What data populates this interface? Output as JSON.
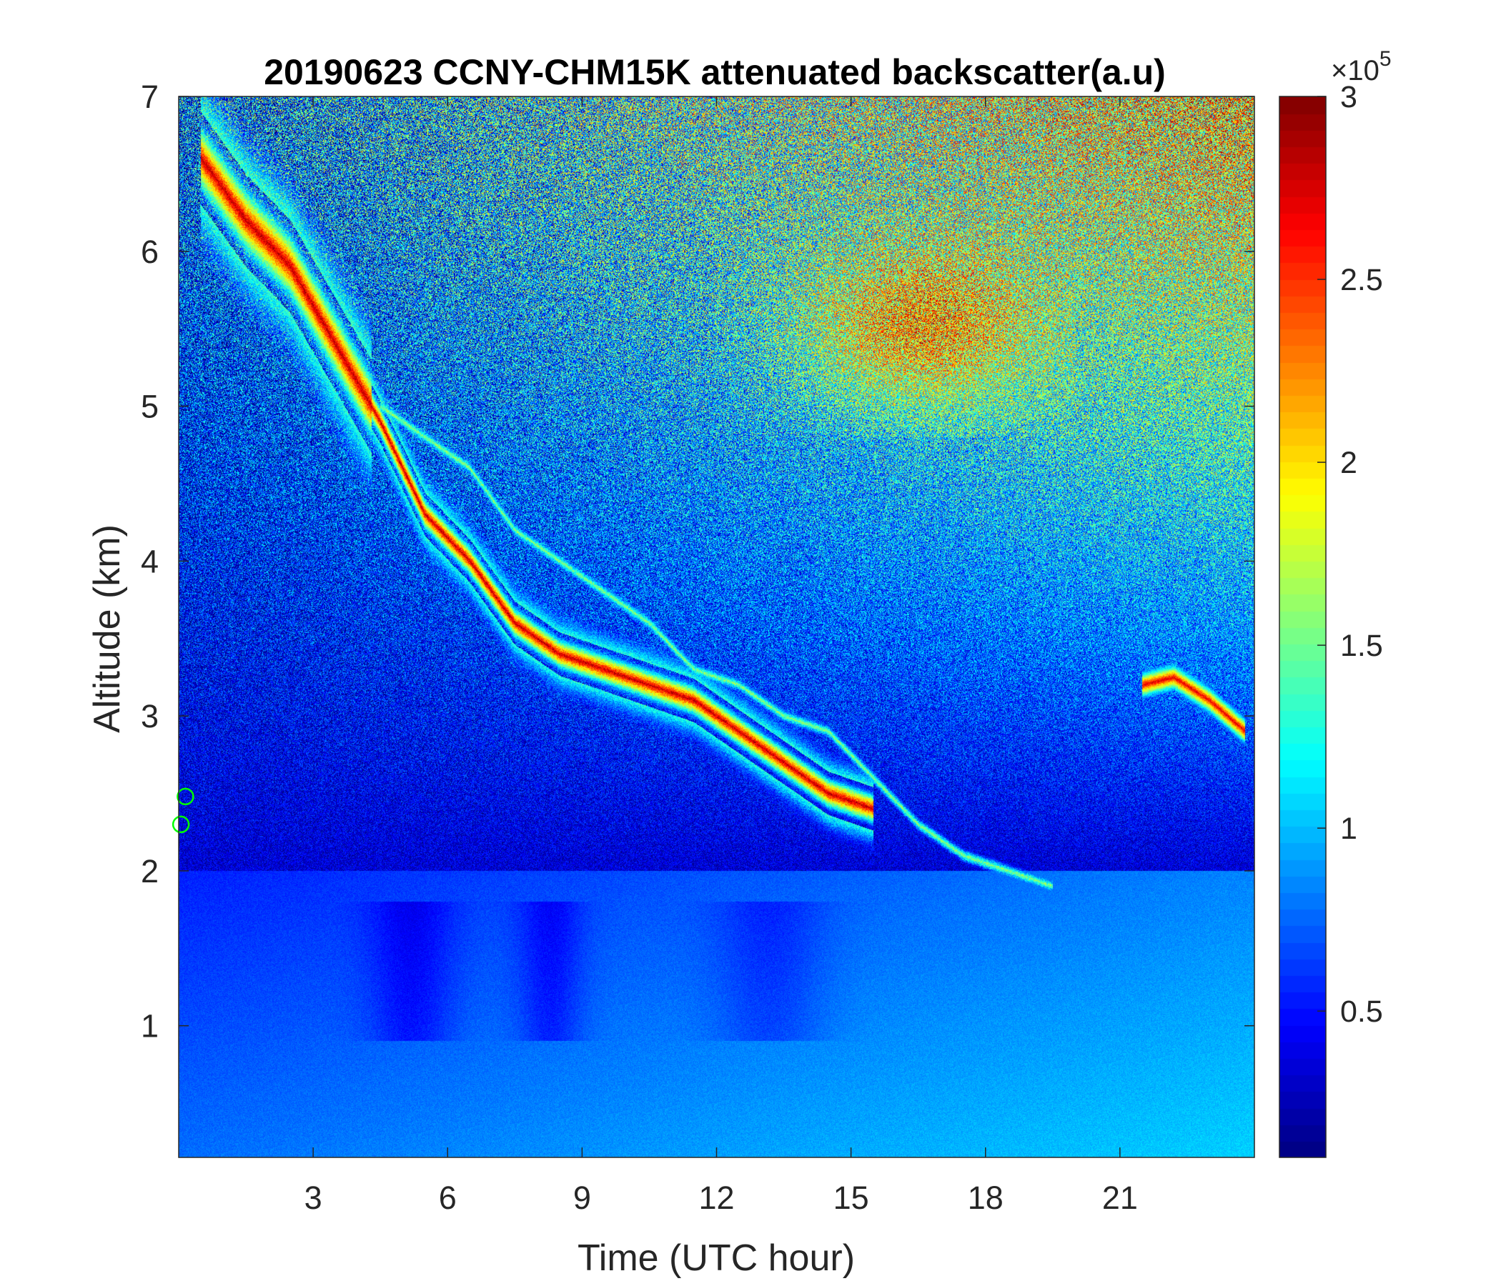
{
  "chart_data": {
    "type": "heatmap",
    "title": "20190623 CCNY-CHM15K attenuated backscatter(a.u)",
    "xlabel": "Time (UTC hour)",
    "ylabel": "Altitude (km)",
    "xlim": [
      0,
      24
    ],
    "ylim": [
      0.15,
      7
    ],
    "xticks": [
      3,
      6,
      9,
      12,
      15,
      18,
      21
    ],
    "xtick_labels": [
      "3",
      "6",
      "9",
      "12",
      "15",
      "18",
      "21"
    ],
    "yticks": [
      1,
      2,
      3,
      4,
      5,
      6,
      7
    ],
    "ytick_labels": [
      "1",
      "2",
      "3",
      "4",
      "5",
      "6",
      "7"
    ],
    "colorbar": {
      "colormap": "jet",
      "range": [
        0.1,
        3
      ],
      "ticks": [
        0.5,
        1,
        1.5,
        2,
        2.5,
        3
      ],
      "tick_labels": [
        "0.5",
        "1",
        "1.5",
        "2",
        "2.5",
        "3"
      ],
      "exponent_base": "×10",
      "exponent": "5"
    },
    "layers": [
      {
        "feature": "descending aerosol layer",
        "time_h": [
          0.5,
          1.5,
          2.5,
          3.5,
          4.5,
          5.5,
          6.5,
          7.5,
          8.5,
          9.5,
          10.5,
          11.5,
          12.5,
          13.5,
          14.5,
          15.5
        ],
        "altitude_km": [
          6.6,
          6.2,
          5.9,
          5.4,
          4.9,
          4.3,
          4.0,
          3.6,
          3.4,
          3.3,
          3.2,
          3.1,
          2.9,
          2.7,
          2.5,
          2.4
        ],
        "peak_value_e5": 2.8
      },
      {
        "feature": "upper aerosol branch",
        "time_h": [
          4.5,
          5.5,
          6.5,
          7.5,
          8.5,
          9.5,
          10.5,
          11.5,
          12.5,
          13.5,
          14.5,
          15.5,
          16.5,
          17.5,
          18.5,
          19.5
        ],
        "altitude_km": [
          5.0,
          4.8,
          4.6,
          4.2,
          4.0,
          3.8,
          3.6,
          3.3,
          3.2,
          3.0,
          2.9,
          2.6,
          2.3,
          2.1,
          2.0,
          1.9
        ],
        "peak_value_e5": 1.6
      },
      {
        "feature": "late-day layer",
        "time_h": [
          21.5,
          22.2,
          23.0,
          23.8
        ],
        "altitude_km": [
          3.2,
          3.25,
          3.1,
          2.9
        ],
        "peak_value_e5": 2.7
      },
      {
        "feature": "elevated noise region",
        "time_h": [
          12,
          24
        ],
        "altitude_km": [
          4.5,
          7
        ],
        "mean_value_e5": 1.8
      }
    ],
    "markers": [
      {
        "type": "circle",
        "color": "#00ff00",
        "x": 0.15,
        "y": 2.48
      },
      {
        "type": "circle",
        "color": "#00ff00",
        "x": 0.05,
        "y": 2.3
      }
    ]
  }
}
